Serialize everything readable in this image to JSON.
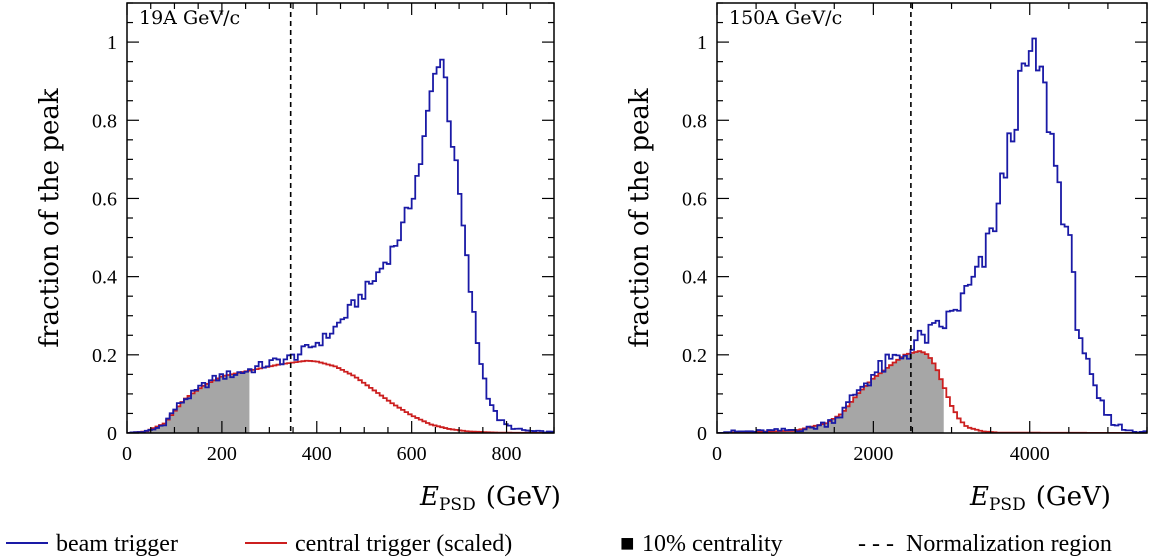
{
  "legend": {
    "beam": "beam trigger",
    "central": "central trigger (scaled)",
    "centrality": "10% centrality",
    "norm": "Normalization region",
    "norm_symbol": "- - -",
    "centrality_symbol": "■"
  },
  "colors": {
    "beam": "#1a1aa6",
    "central": "#cc1f1f",
    "centrality_fill": "#a6a6a6",
    "norm_line": "#000000"
  },
  "chart_data": [
    {
      "type": "histogram",
      "panel_label": "19A GeV/c",
      "xlabel": "E_PSD (GeV)",
      "xlabel_main": "E",
      "xlabel_sub": "PSD",
      "xlabel_unit": "(GeV)",
      "ylabel": "fraction of the peak",
      "xlim": [
        0,
        900
      ],
      "ylim": [
        0,
        1.1
      ],
      "x_ticks": [
        0,
        200,
        400,
        600,
        800
      ],
      "x_tick_labels": [
        "0",
        "200",
        "400",
        "600",
        "800"
      ],
      "y_ticks": [
        0,
        0.2,
        0.4,
        0.6,
        0.8,
        1
      ],
      "y_tick_labels": [
        "0",
        "0.2",
        "0.4",
        "0.6",
        "0.8",
        "1"
      ],
      "normalization_x": 345,
      "centrality_range": [
        0,
        258
      ],
      "beam_trigger": {
        "name": "beam trigger",
        "points": [
          [
            0,
            0.0
          ],
          [
            20,
            0.002
          ],
          [
            40,
            0.004
          ],
          [
            60,
            0.01
          ],
          [
            80,
            0.025
          ],
          [
            100,
            0.06
          ],
          [
            120,
            0.085
          ],
          [
            140,
            0.1
          ],
          [
            160,
            0.12
          ],
          [
            180,
            0.135
          ],
          [
            200,
            0.145
          ],
          [
            220,
            0.15
          ],
          [
            240,
            0.155
          ],
          [
            260,
            0.162
          ],
          [
            280,
            0.17
          ],
          [
            300,
            0.178
          ],
          [
            320,
            0.185
          ],
          [
            340,
            0.19
          ],
          [
            360,
            0.2
          ],
          [
            380,
            0.215
          ],
          [
            400,
            0.23
          ],
          [
            420,
            0.245
          ],
          [
            440,
            0.27
          ],
          [
            460,
            0.3
          ],
          [
            480,
            0.33
          ],
          [
            500,
            0.36
          ],
          [
            520,
            0.39
          ],
          [
            540,
            0.43
          ],
          [
            560,
            0.47
          ],
          [
            580,
            0.52
          ],
          [
            600,
            0.6
          ],
          [
            620,
            0.7
          ],
          [
            640,
            0.86
          ],
          [
            650,
            0.92
          ],
          [
            660,
            0.98
          ],
          [
            670,
            0.92
          ],
          [
            680,
            0.8
          ],
          [
            700,
            0.62
          ],
          [
            720,
            0.4
          ],
          [
            740,
            0.22
          ],
          [
            760,
            0.1
          ],
          [
            780,
            0.04
          ],
          [
            800,
            0.02
          ],
          [
            820,
            0.01
          ],
          [
            850,
            0.005
          ],
          [
            900,
            0.002
          ]
        ]
      },
      "central_trigger": {
        "name": "central trigger (scaled)",
        "points": [
          [
            0,
            0.0
          ],
          [
            40,
            0.004
          ],
          [
            80,
            0.025
          ],
          [
            120,
            0.085
          ],
          [
            160,
            0.12
          ],
          [
            200,
            0.145
          ],
          [
            240,
            0.155
          ],
          [
            280,
            0.165
          ],
          [
            320,
            0.175
          ],
          [
            360,
            0.182
          ],
          [
            380,
            0.185
          ],
          [
            400,
            0.183
          ],
          [
            440,
            0.17
          ],
          [
            480,
            0.145
          ],
          [
            520,
            0.11
          ],
          [
            560,
            0.075
          ],
          [
            600,
            0.045
          ],
          [
            640,
            0.022
          ],
          [
            680,
            0.01
          ],
          [
            720,
            0.004
          ],
          [
            780,
            0.001
          ],
          [
            900,
            0.0
          ]
        ]
      }
    },
    {
      "type": "histogram",
      "panel_label": "150A GeV/c",
      "xlabel": "E_PSD (GeV)",
      "xlabel_main": "E",
      "xlabel_sub": "PSD",
      "xlabel_unit": "(GeV)",
      "ylabel": "fraction of the peak",
      "xlim": [
        0,
        5500
      ],
      "ylim": [
        0,
        1.1
      ],
      "x_ticks": [
        0,
        2000,
        4000
      ],
      "x_tick_labels": [
        "0",
        "2000",
        "4000"
      ],
      "y_ticks": [
        0,
        0.2,
        0.4,
        0.6,
        0.8,
        1
      ],
      "y_tick_labels": [
        "0",
        "0.2",
        "0.4",
        "0.6",
        "0.8",
        "1"
      ],
      "normalization_x": 2480,
      "centrality_range": [
        0,
        2900
      ],
      "beam_trigger": {
        "name": "beam trigger",
        "points": [
          [
            0,
            0.003
          ],
          [
            500,
            0.004
          ],
          [
            1000,
            0.008
          ],
          [
            1200,
            0.012
          ],
          [
            1400,
            0.025
          ],
          [
            1600,
            0.05
          ],
          [
            1800,
            0.11
          ],
          [
            2000,
            0.15
          ],
          [
            2200,
            0.18
          ],
          [
            2400,
            0.2
          ],
          [
            2600,
            0.24
          ],
          [
            2800,
            0.26
          ],
          [
            3000,
            0.3
          ],
          [
            3200,
            0.36
          ],
          [
            3400,
            0.43
          ],
          [
            3600,
            0.58
          ],
          [
            3800,
            0.8
          ],
          [
            3900,
            0.9
          ],
          [
            4000,
            0.96
          ],
          [
            4100,
            0.95
          ],
          [
            4200,
            0.86
          ],
          [
            4400,
            0.6
          ],
          [
            4500,
            0.5
          ],
          [
            4600,
            0.3
          ],
          [
            4800,
            0.12
          ],
          [
            5000,
            0.04
          ],
          [
            5200,
            0.01
          ],
          [
            5500,
            0.002
          ]
        ]
      },
      "central_trigger": {
        "name": "central trigger (scaled)",
        "points": [
          [
            0,
            0.0
          ],
          [
            1000,
            0.006
          ],
          [
            1400,
            0.025
          ],
          [
            1600,
            0.05
          ],
          [
            1800,
            0.1
          ],
          [
            2000,
            0.14
          ],
          [
            2200,
            0.17
          ],
          [
            2400,
            0.2
          ],
          [
            2600,
            0.21
          ],
          [
            2700,
            0.2
          ],
          [
            2800,
            0.17
          ],
          [
            2900,
            0.12
          ],
          [
            3000,
            0.07
          ],
          [
            3100,
            0.035
          ],
          [
            3200,
            0.015
          ],
          [
            3400,
            0.004
          ],
          [
            3600,
            0.001
          ],
          [
            5500,
            0.0
          ]
        ]
      }
    }
  ]
}
